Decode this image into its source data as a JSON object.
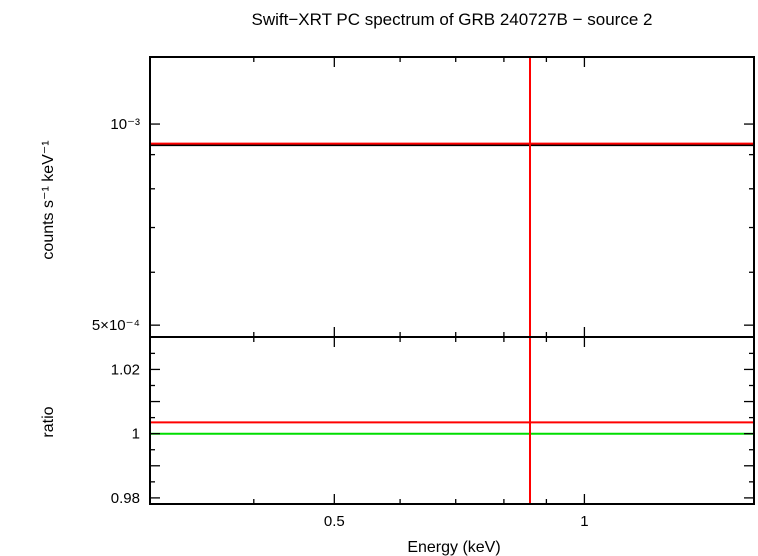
{
  "chart_data": [
    {
      "type": "line",
      "title": "Swift−XRT PC spectrum of GRB 240727B − source 2",
      "xlabel": "Energy (keV)",
      "ylabel": "counts s⁻¹ keV⁻¹",
      "xscale": "log",
      "yscale": "log",
      "xlim": [
        0.3,
        1.6
      ],
      "ylim": [
        0.00048,
        0.00126
      ],
      "x_tick_labels": [],
      "y_tick_labels": [
        "10⁻³",
        "5×10⁻⁴"
      ],
      "y_tick_values": [
        0.001,
        0.0005
      ],
      "series": [
        {
          "role": "data",
          "color": "#000000",
          "x": [
            0.3,
            1.6
          ],
          "y": [
            0.00093,
            0.00093
          ]
        },
        {
          "role": "model",
          "color": "#ff0000",
          "x": [
            0.3,
            1.6
          ],
          "y": [
            0.000935,
            0.000935
          ]
        },
        {
          "role": "vertical-marker",
          "color": "#ff0000",
          "x": [
            0.86,
            0.86
          ],
          "y": [
            0.00048,
            0.00126
          ]
        }
      ],
      "grid": false
    },
    {
      "type": "line",
      "xlabel": "Energy (keV)",
      "ylabel": "ratio",
      "xscale": "log",
      "yscale": "linear",
      "xlim": [
        0.3,
        1.6
      ],
      "ylim": [
        0.9781,
        1.0301
      ],
      "x_tick_labels": [
        "0.5",
        "1"
      ],
      "x_tick_values": [
        0.5,
        1
      ],
      "y_tick_labels": [
        "1.02",
        "1",
        "0.98"
      ],
      "y_tick_values": [
        1.02,
        1,
        0.98
      ],
      "series": [
        {
          "role": "reference",
          "color": "#00dd00",
          "x": [
            0.3,
            1.6
          ],
          "y": [
            1.0,
            1.0
          ]
        },
        {
          "role": "ratio",
          "color": "#ff0000",
          "x": [
            0.3,
            1.6
          ],
          "y": [
            1.0035,
            1.0035
          ]
        },
        {
          "role": "vertical-marker",
          "color": "#ff0000",
          "x": [
            0.86,
            0.86
          ],
          "y": [
            0.9781,
            1.0301
          ]
        }
      ],
      "grid": false
    }
  ]
}
